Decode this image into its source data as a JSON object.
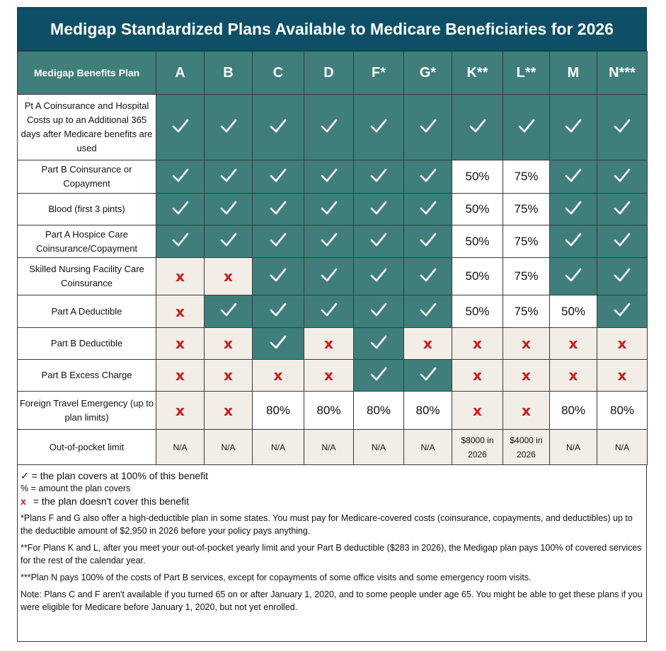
{
  "title": "Medigap Standardized Plans Available to Medicare Beneficiaries for 2026",
  "header": {
    "label": "Medigap Benefits Plan",
    "plans": [
      "A",
      "B",
      "C",
      "D",
      "F*",
      "G*",
      "K**",
      "L**",
      "M",
      "N***"
    ]
  },
  "rows": [
    {
      "label": "Pt A Coinsurance and Hospital Costs up to an Additional 365 days after Medicare benefits are used",
      "cells": [
        "check",
        "check",
        "check",
        "check",
        "check",
        "check",
        "check",
        "check",
        "check",
        "check"
      ]
    },
    {
      "label": "Part  B Coinsurance or Copayment",
      "cells": [
        "check",
        "check",
        "check",
        "check",
        "check",
        "check",
        "50%",
        "75%",
        "check",
        "check"
      ]
    },
    {
      "label": "Blood (first 3 pints)",
      "cells": [
        "check",
        "check",
        "check",
        "check",
        "check",
        "check",
        "50%",
        "75%",
        "check",
        "check"
      ]
    },
    {
      "label": "Part  A Hospice Care Coinsurance/Copayment",
      "cells": [
        "check",
        "check",
        "check",
        "check",
        "check",
        "check",
        "50%",
        "75%",
        "check",
        "check"
      ]
    },
    {
      "label": "Skilled Nursing Facility Care Coinsurance",
      "cells": [
        "x",
        "x",
        "check",
        "check",
        "check",
        "check",
        "50%",
        "75%",
        "check",
        "check"
      ]
    },
    {
      "label": "Part A Deductible",
      "cells": [
        "x",
        "check",
        "check",
        "check",
        "check",
        "check",
        "50%",
        "75%",
        "50%",
        "check"
      ]
    },
    {
      "label": "Part B Deductible",
      "cells": [
        "x",
        "x",
        "check",
        "x",
        "check",
        "x",
        "x",
        "x",
        "x",
        "x"
      ]
    },
    {
      "label": "Part B Excess Charge",
      "cells": [
        "x",
        "x",
        "x",
        "x",
        "check",
        "check",
        "x",
        "x",
        "x",
        "x"
      ]
    },
    {
      "label": "Foreign Travel Emergency (up to plan limits)",
      "cells": [
        "x",
        "x",
        "80%",
        "80%",
        "80%",
        "80%",
        "x",
        "x",
        "80%",
        "80%"
      ]
    },
    {
      "label": "Out-of-pocket limit",
      "cells": [
        "N/A",
        "N/A",
        "N/A",
        "N/A",
        "N/A",
        "N/A",
        "$8000 in 2026",
        "$4000 in 2026",
        "N/A",
        "N/A"
      ]
    }
  ],
  "legend": {
    "check_text": "= the plan covers at 100% of this benefit",
    "pct_text": "% = amount the plan covers",
    "x_symbol": "x",
    "x_text": "= the plan doesn't cover this benefit",
    "note1": "*Plans F and G also offer a high-deductible plan in some states. You must pay for Medicare-covered costs (coinsurance, copayments, and deductibles) up to the deductible amount of $2,950 in 2026 before your policy pays anything.",
    "note2": "**For Plans K and L, after you meet your out-of-pocket yearly limit and your Part B deductible ($283 in 2026), the Medigap plan pays 100% of covered  services for the rest of the calendar year.",
    "note3": "***Plan N pays 100% of the costs of Part B services, except for copayments of some office visits and some emergency room visits.",
    "note4": "Note: Plans C and F aren't available if you turned 65 on or after January 1, 2020, and to some people under age 65. You might be able to get these plans if you were eligible for Medicare before January 1, 2020, but not yet enrolled."
  },
  "colors": {
    "title_bg": "#0e4f67",
    "covered_bg": "#3f7e7b",
    "not_covered_bg": "#f2ede6",
    "x_color": "#cc1b1b"
  },
  "icons": {
    "check": "check-icon",
    "x": "x-mark-icon"
  }
}
